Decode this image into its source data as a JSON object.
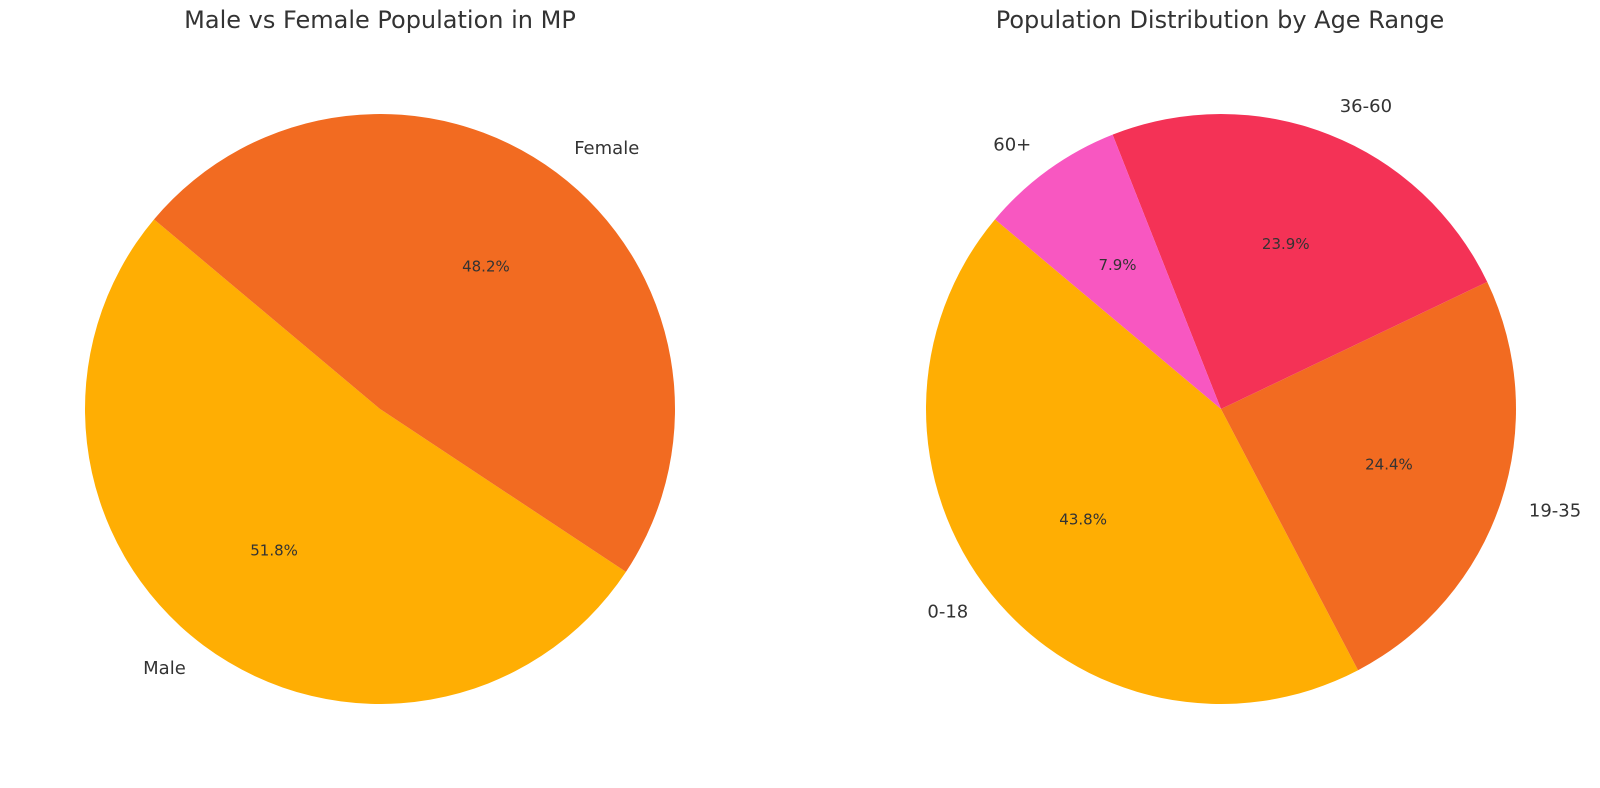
{
  "chart_data": [
    {
      "type": "pie",
      "title": "Male vs Female Population in MP",
      "start_angle_deg": 140,
      "direction": "counterclockwise",
      "slices": [
        {
          "label": "Male",
          "value": 51.8,
          "pct_label": "51.8%",
          "color": "#FFAE03"
        },
        {
          "label": "Female",
          "value": 48.2,
          "pct_label": "48.2%",
          "color": "#F26B21"
        }
      ]
    },
    {
      "type": "pie",
      "title": "Population Distribution by Age Range",
      "start_angle_deg": 140,
      "direction": "counterclockwise",
      "slices": [
        {
          "label": "0-18",
          "value": 43.8,
          "pct_label": "43.8%",
          "color": "#FFAE03"
        },
        {
          "label": "19-35",
          "value": 24.4,
          "pct_label": "24.4%",
          "color": "#F26B21"
        },
        {
          "label": "36-60",
          "value": 23.9,
          "pct_label": "23.9%",
          "color": "#F43256"
        },
        {
          "label": "60+",
          "value": 7.9,
          "pct_label": "7.9%",
          "color": "#F857C1"
        }
      ]
    }
  ]
}
